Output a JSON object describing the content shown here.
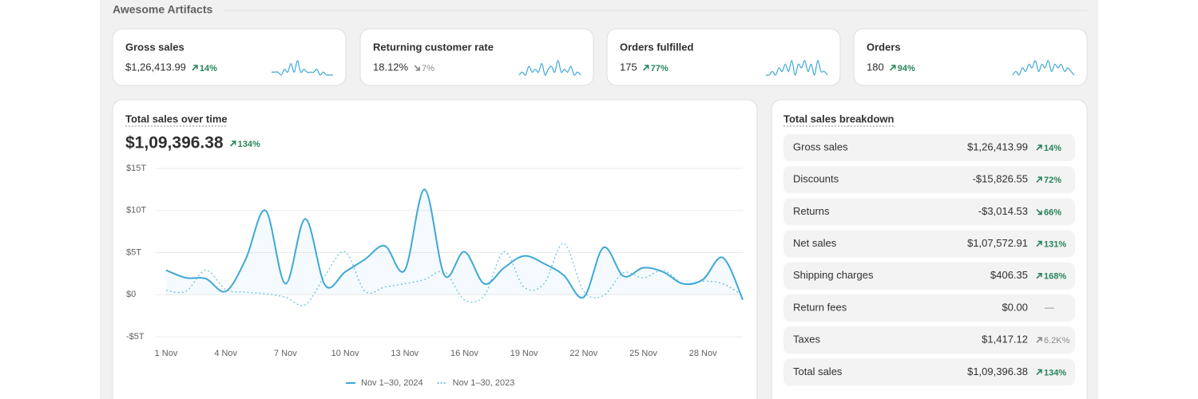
{
  "header": {
    "title": "Awesome Artifacts"
  },
  "kpis": [
    {
      "label": "Gross sales",
      "value": "$1,26,413.99",
      "change": "14%",
      "direction": "up",
      "tone": "positive",
      "sparkline": [
        2,
        2,
        2,
        1,
        3,
        2,
        5,
        2,
        6,
        2,
        3,
        2,
        2,
        2,
        3,
        1,
        2,
        1,
        1,
        1
      ]
    },
    {
      "label": "Returning customer rate",
      "value": "18.12%",
      "change": "7%",
      "direction": "down",
      "tone": "neutral",
      "sparkline": [
        1,
        2,
        1,
        4,
        2,
        3,
        2,
        5,
        1,
        3,
        4,
        2,
        6,
        2,
        3,
        2,
        4,
        1,
        2,
        1
      ]
    },
    {
      "label": "Orders fulfilled",
      "value": "175",
      "change": "77%",
      "direction": "up",
      "tone": "positive",
      "sparkline": [
        1,
        1,
        2,
        1,
        3,
        2,
        4,
        2,
        5,
        1,
        4,
        3,
        5,
        2,
        4,
        1,
        5,
        2,
        2,
        1
      ]
    },
    {
      "label": "Orders",
      "value": "180",
      "change": "94%",
      "direction": "up",
      "tone": "positive",
      "sparkline": [
        1,
        2,
        1,
        3,
        2,
        4,
        3,
        5,
        2,
        4,
        3,
        5,
        2,
        4,
        3,
        4,
        2,
        3,
        2,
        1
      ]
    }
  ],
  "chart_data": {
    "type": "line",
    "title": "Total sales over time",
    "total": "$1,09,396.38",
    "change": "134%",
    "direction": "up",
    "tone": "positive",
    "categories": [
      "1 Nov",
      null,
      null,
      "4 Nov",
      null,
      null,
      "7 Nov",
      null,
      null,
      "10 Nov",
      null,
      null,
      "13 Nov",
      null,
      null,
      "16 Nov",
      null,
      null,
      "19 Nov",
      null,
      null,
      "22 Nov",
      null,
      null,
      "25 Nov",
      null,
      null,
      "28 Nov",
      null,
      null
    ],
    "series": [
      {
        "name": "Nov 1–30, 2024",
        "color": "#3ea8d6",
        "style": "solid",
        "values": [
          2.9,
          2.0,
          1.9,
          0.4,
          4.2,
          10.0,
          1.3,
          9.0,
          1.1,
          2.7,
          4.2,
          5.8,
          2.9,
          12.5,
          2.3,
          5.1,
          1.3,
          3.2,
          4.6,
          3.7,
          2.3,
          -0.3,
          5.6,
          2.2,
          3.2,
          2.7,
          1.3,
          1.8,
          4.4,
          -0.6
        ]
      },
      {
        "name": "Nov 1–30, 2023",
        "color": "#7cc3e0",
        "style": "dotted",
        "values": [
          0.5,
          0.4,
          2.9,
          0.6,
          0.3,
          0.1,
          -0.3,
          -1.2,
          2.3,
          5.1,
          0.4,
          0.9,
          1.3,
          1.8,
          2.7,
          -0.6,
          -0.1,
          5.1,
          0.9,
          1.3,
          6.1,
          0.4,
          -0.1,
          2.6,
          2.0,
          2.9,
          1.3,
          1.6,
          1.3,
          -0.1
        ]
      }
    ],
    "ylim": [
      -5,
      15
    ],
    "yticks": [
      {
        "value": -5,
        "label": "-$5T"
      },
      {
        "value": 0,
        "label": "$0"
      },
      {
        "value": 5,
        "label": "$5T"
      },
      {
        "value": 10,
        "label": "$10T"
      },
      {
        "value": 15,
        "label": "$15T"
      }
    ],
    "grid": true
  },
  "breakdown": {
    "title": "Total sales breakdown",
    "rows": [
      {
        "label": "Gross sales",
        "value": "$1,26,413.99",
        "change": "14%",
        "direction": "up",
        "tone": "positive"
      },
      {
        "label": "Discounts",
        "value": "-$15,826.55",
        "change": "72%",
        "direction": "up",
        "tone": "positive"
      },
      {
        "label": "Returns",
        "value": "-$3,014.53",
        "change": "66%",
        "direction": "down",
        "tone": "positive"
      },
      {
        "label": "Net sales",
        "value": "$1,07,572.91",
        "change": "131%",
        "direction": "up",
        "tone": "positive"
      },
      {
        "label": "Shipping charges",
        "value": "$406.35",
        "change": "168%",
        "direction": "up",
        "tone": "positive"
      },
      {
        "label": "Return fees",
        "value": "$0.00",
        "change": "—",
        "direction": "none",
        "tone": "neutral"
      },
      {
        "label": "Taxes",
        "value": "$1,417.12",
        "change": "6.2K%",
        "direction": "up",
        "tone": "neutral"
      },
      {
        "label": "Total sales",
        "value": "$1,09,396.38",
        "change": "134%",
        "direction": "up",
        "tone": "positive"
      }
    ]
  }
}
